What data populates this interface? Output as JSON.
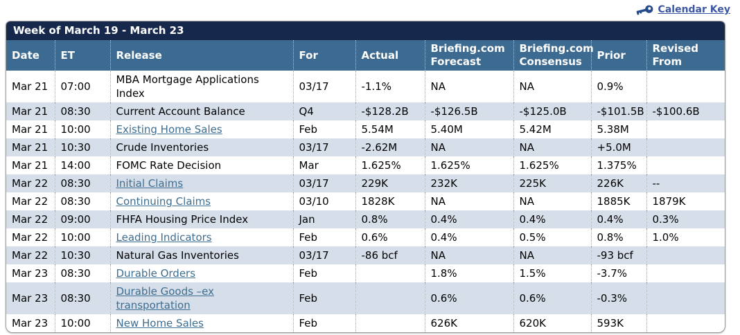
{
  "page": {
    "calendar_key_label": "Calendar Key"
  },
  "table": {
    "title": "Week of March 19 - March 23",
    "columns": [
      {
        "key": "date",
        "label": "Date"
      },
      {
        "key": "et",
        "label": "ET"
      },
      {
        "key": "release",
        "label": "Release"
      },
      {
        "key": "for",
        "label": "For"
      },
      {
        "key": "actual",
        "label": "Actual"
      },
      {
        "key": "forecast",
        "label": "Briefing.com Forecast"
      },
      {
        "key": "consensus",
        "label": "Briefing.com Consensus"
      },
      {
        "key": "prior",
        "label": "Prior"
      },
      {
        "key": "revised",
        "label": "Revised From"
      }
    ],
    "rows": [
      {
        "date": "Mar 21",
        "et": "07:00",
        "release": "MBA Mortgage Applications Index",
        "release_link": false,
        "for": "03/17",
        "actual": "-1.1%",
        "forecast": "NA",
        "consensus": "NA",
        "prior": "0.9%",
        "revised": ""
      },
      {
        "date": "Mar 21",
        "et": "08:30",
        "release": "Current Account Balance",
        "release_link": false,
        "for": "Q4",
        "actual": "-$128.2B",
        "forecast": "-$126.5B",
        "consensus": "-$125.0B",
        "prior": "-$101.5B",
        "revised": "-$100.6B"
      },
      {
        "date": "Mar 21",
        "et": "10:00",
        "release": "Existing Home Sales",
        "release_link": true,
        "for": "Feb",
        "actual": "5.54M",
        "forecast": "5.40M",
        "consensus": "5.42M",
        "prior": "5.38M",
        "revised": ""
      },
      {
        "date": "Mar 21",
        "et": "10:30",
        "release": "Crude Inventories",
        "release_link": false,
        "for": "03/17",
        "actual": "-2.62M",
        "forecast": "NA",
        "consensus": "NA",
        "prior": "+5.0M",
        "revised": ""
      },
      {
        "date": "Mar 21",
        "et": "14:00",
        "release": "FOMC Rate Decision",
        "release_link": false,
        "for": "Mar",
        "actual": "1.625%",
        "forecast": "1.625%",
        "consensus": "1.625%",
        "prior": "1.375%",
        "revised": ""
      },
      {
        "date": "Mar 22",
        "et": "08:30",
        "release": "Initial Claims",
        "release_link": true,
        "for": "03/17",
        "actual": "229K",
        "forecast": "232K",
        "consensus": "225K",
        "prior": "226K",
        "revised": "--"
      },
      {
        "date": "Mar 22",
        "et": "08:30",
        "release": "Continuing Claims",
        "release_link": true,
        "for": "03/10",
        "actual": "1828K",
        "forecast": "NA",
        "consensus": "NA",
        "prior": "1885K",
        "revised": "1879K"
      },
      {
        "date": "Mar 22",
        "et": "09:00",
        "release": "FHFA Housing Price Index",
        "release_link": false,
        "for": "Jan",
        "actual": "0.8%",
        "forecast": "0.4%",
        "consensus": "0.4%",
        "prior": "0.4%",
        "revised": "0.3%"
      },
      {
        "date": "Mar 22",
        "et": "10:00",
        "release": "Leading Indicators",
        "release_link": true,
        "for": "Feb",
        "actual": "0.6%",
        "forecast": "0.4%",
        "consensus": "0.5%",
        "prior": "0.8%",
        "revised": "1.0%"
      },
      {
        "date": "Mar 22",
        "et": "10:30",
        "release": "Natural Gas Inventories",
        "release_link": false,
        "for": "03/17",
        "actual": "-86 bcf",
        "forecast": "NA",
        "consensus": "NA",
        "prior": "-93 bcf",
        "revised": ""
      },
      {
        "date": "Mar 23",
        "et": "08:30",
        "release": "Durable Orders",
        "release_link": true,
        "for": "Feb",
        "actual": "",
        "forecast": "1.8%",
        "consensus": "1.5%",
        "prior": "-3.7%",
        "revised": ""
      },
      {
        "date": "Mar 23",
        "et": "08:30",
        "release": "Durable Goods –ex transportation",
        "release_link": true,
        "for": "Feb",
        "actual": "",
        "forecast": "0.6%",
        "consensus": "0.6%",
        "prior": "-0.3%",
        "revised": ""
      },
      {
        "date": "Mar 23",
        "et": "10:00",
        "release": "New Home Sales",
        "release_link": true,
        "for": "Feb",
        "actual": "",
        "forecast": "626K",
        "consensus": "620K",
        "prior": "593K",
        "revised": ""
      }
    ]
  },
  "colors": {
    "title_bar": "#16294d",
    "header_row": "#3c6a91",
    "row_stripe": "#d5dee9",
    "link": "#3d6e90",
    "calendar_key_link": "#3b56a3",
    "key_icon": "#234a8c"
  }
}
